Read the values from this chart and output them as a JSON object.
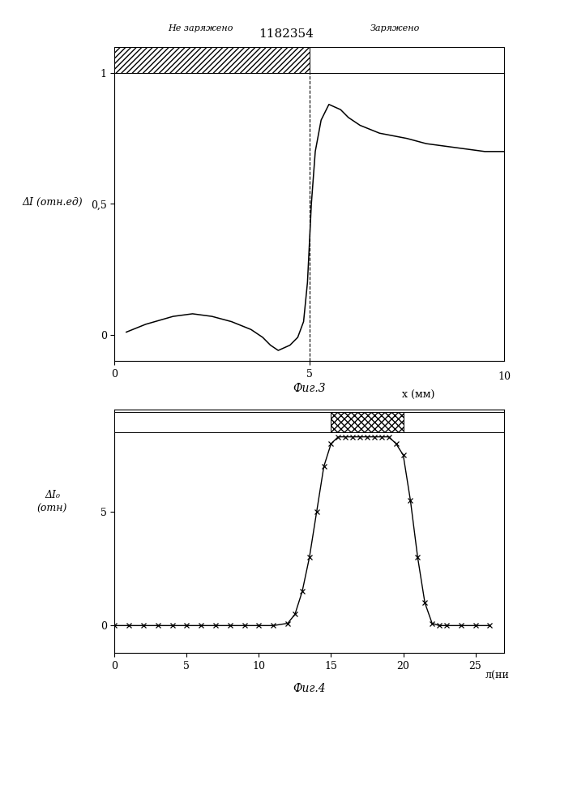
{
  "title": "1182354",
  "fig3_caption": "Фиг.3",
  "fig4_caption": "Фиг.4",
  "fig3": {
    "ylabel": "ΔI (отн.ед)",
    "xlabel": "x (мм)",
    "xlim": [
      0,
      10
    ],
    "ylim": [
      -0.1,
      1.0
    ],
    "yticks": [
      0,
      0.5,
      1.0
    ],
    "ytick_labels": [
      "0",
      "0,5",
      "1"
    ],
    "xticks": [
      0,
      5
    ],
    "xtick_labels": [
      "0",
      "5"
    ],
    "dashed_x": 5,
    "label_left": "Не заряжено",
    "label_right": "Заряжено",
    "curve_x": [
      0.3,
      0.8,
      1.5,
      2.0,
      2.5,
      3.0,
      3.5,
      3.8,
      4.0,
      4.2,
      4.5,
      4.7,
      4.85,
      4.95,
      5.05,
      5.15,
      5.3,
      5.5,
      5.8,
      6.0,
      6.3,
      6.8,
      7.5,
      8.0,
      8.5,
      9.0,
      9.5,
      10.0
    ],
    "curve_y": [
      0.01,
      0.04,
      0.07,
      0.08,
      0.07,
      0.05,
      0.02,
      -0.01,
      -0.04,
      -0.06,
      -0.04,
      -0.01,
      0.05,
      0.2,
      0.5,
      0.7,
      0.82,
      0.88,
      0.86,
      0.83,
      0.8,
      0.77,
      0.75,
      0.73,
      0.72,
      0.71,
      0.7,
      0.7
    ]
  },
  "fig4": {
    "ylabel": "ΔI₀\n(отн)",
    "xlabel": "л(ни",
    "xlim": [
      0,
      27
    ],
    "ylim": [
      -1.2,
      9.5
    ],
    "yticks": [
      0,
      5
    ],
    "ytick_labels": [
      "0",
      "5"
    ],
    "xticks": [
      0,
      5,
      10,
      15,
      20,
      25
    ],
    "xtick_labels": [
      "0",
      "5",
      "10",
      "15",
      "20",
      "25"
    ],
    "hatch_start": 15,
    "hatch_end": 20,
    "curve_x": [
      0,
      1,
      2,
      3,
      4,
      5,
      6,
      7,
      8,
      9,
      10,
      11,
      12,
      12.5,
      13.0,
      13.5,
      14.0,
      14.5,
      15.0,
      15.5,
      16.0,
      16.5,
      17.0,
      17.5,
      18.0,
      18.5,
      19.0,
      19.5,
      20.0,
      20.5,
      21.0,
      21.5,
      22.0,
      22.5,
      23.0,
      24.0,
      25.0,
      26.0
    ],
    "curve_y": [
      0,
      0,
      0,
      0,
      0,
      0,
      0,
      0,
      0,
      0,
      0,
      0,
      0.1,
      0.5,
      1.5,
      3.0,
      5.0,
      7.0,
      8.0,
      8.3,
      8.3,
      8.3,
      8.3,
      8.3,
      8.3,
      8.3,
      8.3,
      8.0,
      7.5,
      5.5,
      3.0,
      1.0,
      0.1,
      0,
      0,
      0,
      0,
      0
    ]
  },
  "bg_color": "#ffffff",
  "line_color": "#000000"
}
